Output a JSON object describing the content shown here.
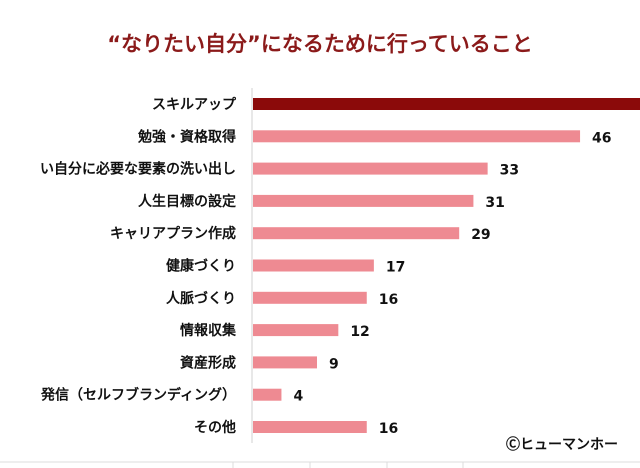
{
  "chart_data": {
    "type": "bar",
    "orientation": "horizontal",
    "title": "“なりたい自分”になるために行っていること",
    "categories": [
      "スキルアップ",
      "勉強・資格取得",
      "い自分に必要な要素の洗い出し",
      "人生目標の設定",
      "キャリアプラン作成",
      "健康づくり",
      "人脈づくり",
      "情報収集",
      "資産形成",
      "発信（セルフブランディング）",
      "その他"
    ],
    "values": [
      null,
      46,
      33,
      31,
      29,
      17,
      16,
      12,
      9,
      4,
      16
    ],
    "highlight_index": 0,
    "colors": {
      "highlight": "#8b0a0a",
      "bar": "#ee8a92",
      "axis": "#d0d0d0"
    },
    "xlabel": "",
    "ylabel": "",
    "grid": false,
    "legend": "none"
  },
  "credit": "Ⓒヒューマンホー"
}
